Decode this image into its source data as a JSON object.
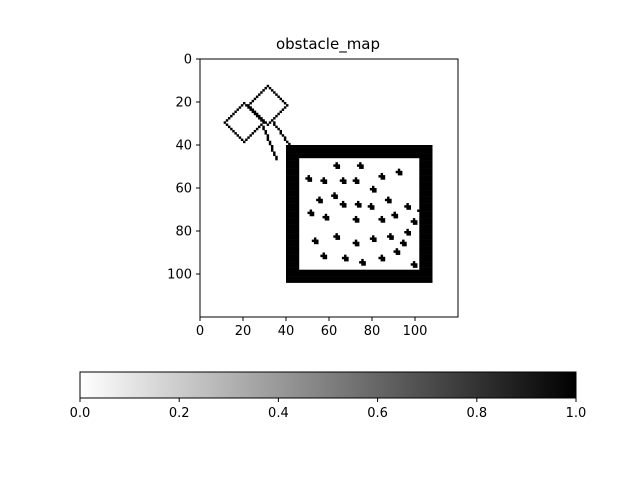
{
  "chart_data": {
    "type": "heatmap",
    "title": "obstacle_map",
    "xlabel": "",
    "ylabel": "",
    "xlim": [
      0,
      120
    ],
    "ylim": [
      120,
      0
    ],
    "x_ticks": [
      0,
      20,
      40,
      60,
      80,
      100
    ],
    "y_ticks": [
      0,
      20,
      40,
      60,
      80,
      100
    ],
    "colormap": "Greys",
    "value_range": [
      0,
      1
    ],
    "colorbar": {
      "orientation": "horizontal",
      "placement": "bottom",
      "ticks": [
        "0.0",
        "0.2",
        "0.4",
        "0.6",
        "0.8",
        "1.0"
      ]
    },
    "grid_shape": [
      120,
      120
    ],
    "colors": {
      "occupied": "#000000",
      "free": "#ffffff"
    },
    "obstacles": {
      "outer_walls": {
        "x": [
          40,
          107
        ],
        "y": [
          40,
          103
        ],
        "thickness": 5
      },
      "diamonds": [
        {
          "center": [
            20,
            29
          ],
          "half_diagonal": 9
        },
        {
          "center": [
            31,
            21
          ],
          "half_diagonal": 9
        }
      ],
      "diamond_lines": [
        {
          "from": [
            33,
            28
          ],
          "to": [
            43,
            42
          ]
        },
        {
          "from": [
            29,
            31
          ],
          "to": [
            35,
            46
          ]
        }
      ],
      "blobs": [
        [
          50,
          55
        ],
        [
          57,
          56
        ],
        [
          66,
          56
        ],
        [
          72,
          56
        ],
        [
          84,
          54
        ],
        [
          92,
          52
        ],
        [
          55,
          65
        ],
        [
          66,
          67
        ],
        [
          73,
          67
        ],
        [
          87,
          65
        ],
        [
          96,
          68
        ],
        [
          102,
          70
        ],
        [
          51,
          71
        ],
        [
          58,
          73
        ],
        [
          72,
          74
        ],
        [
          84,
          74
        ],
        [
          90,
          72
        ],
        [
          99,
          75
        ],
        [
          53,
          84
        ],
        [
          63,
          82
        ],
        [
          72,
          85
        ],
        [
          80,
          83
        ],
        [
          88,
          82
        ],
        [
          96,
          80
        ],
        [
          57,
          91
        ],
        [
          67,
          92
        ],
        [
          75,
          94
        ],
        [
          84,
          92
        ],
        [
          91,
          89
        ],
        [
          99,
          95
        ],
        [
          63,
          49
        ],
        [
          74,
          49
        ],
        [
          80,
          60
        ],
        [
          62,
          63
        ],
        [
          79,
          68
        ],
        [
          94,
          85
        ]
      ]
    }
  }
}
